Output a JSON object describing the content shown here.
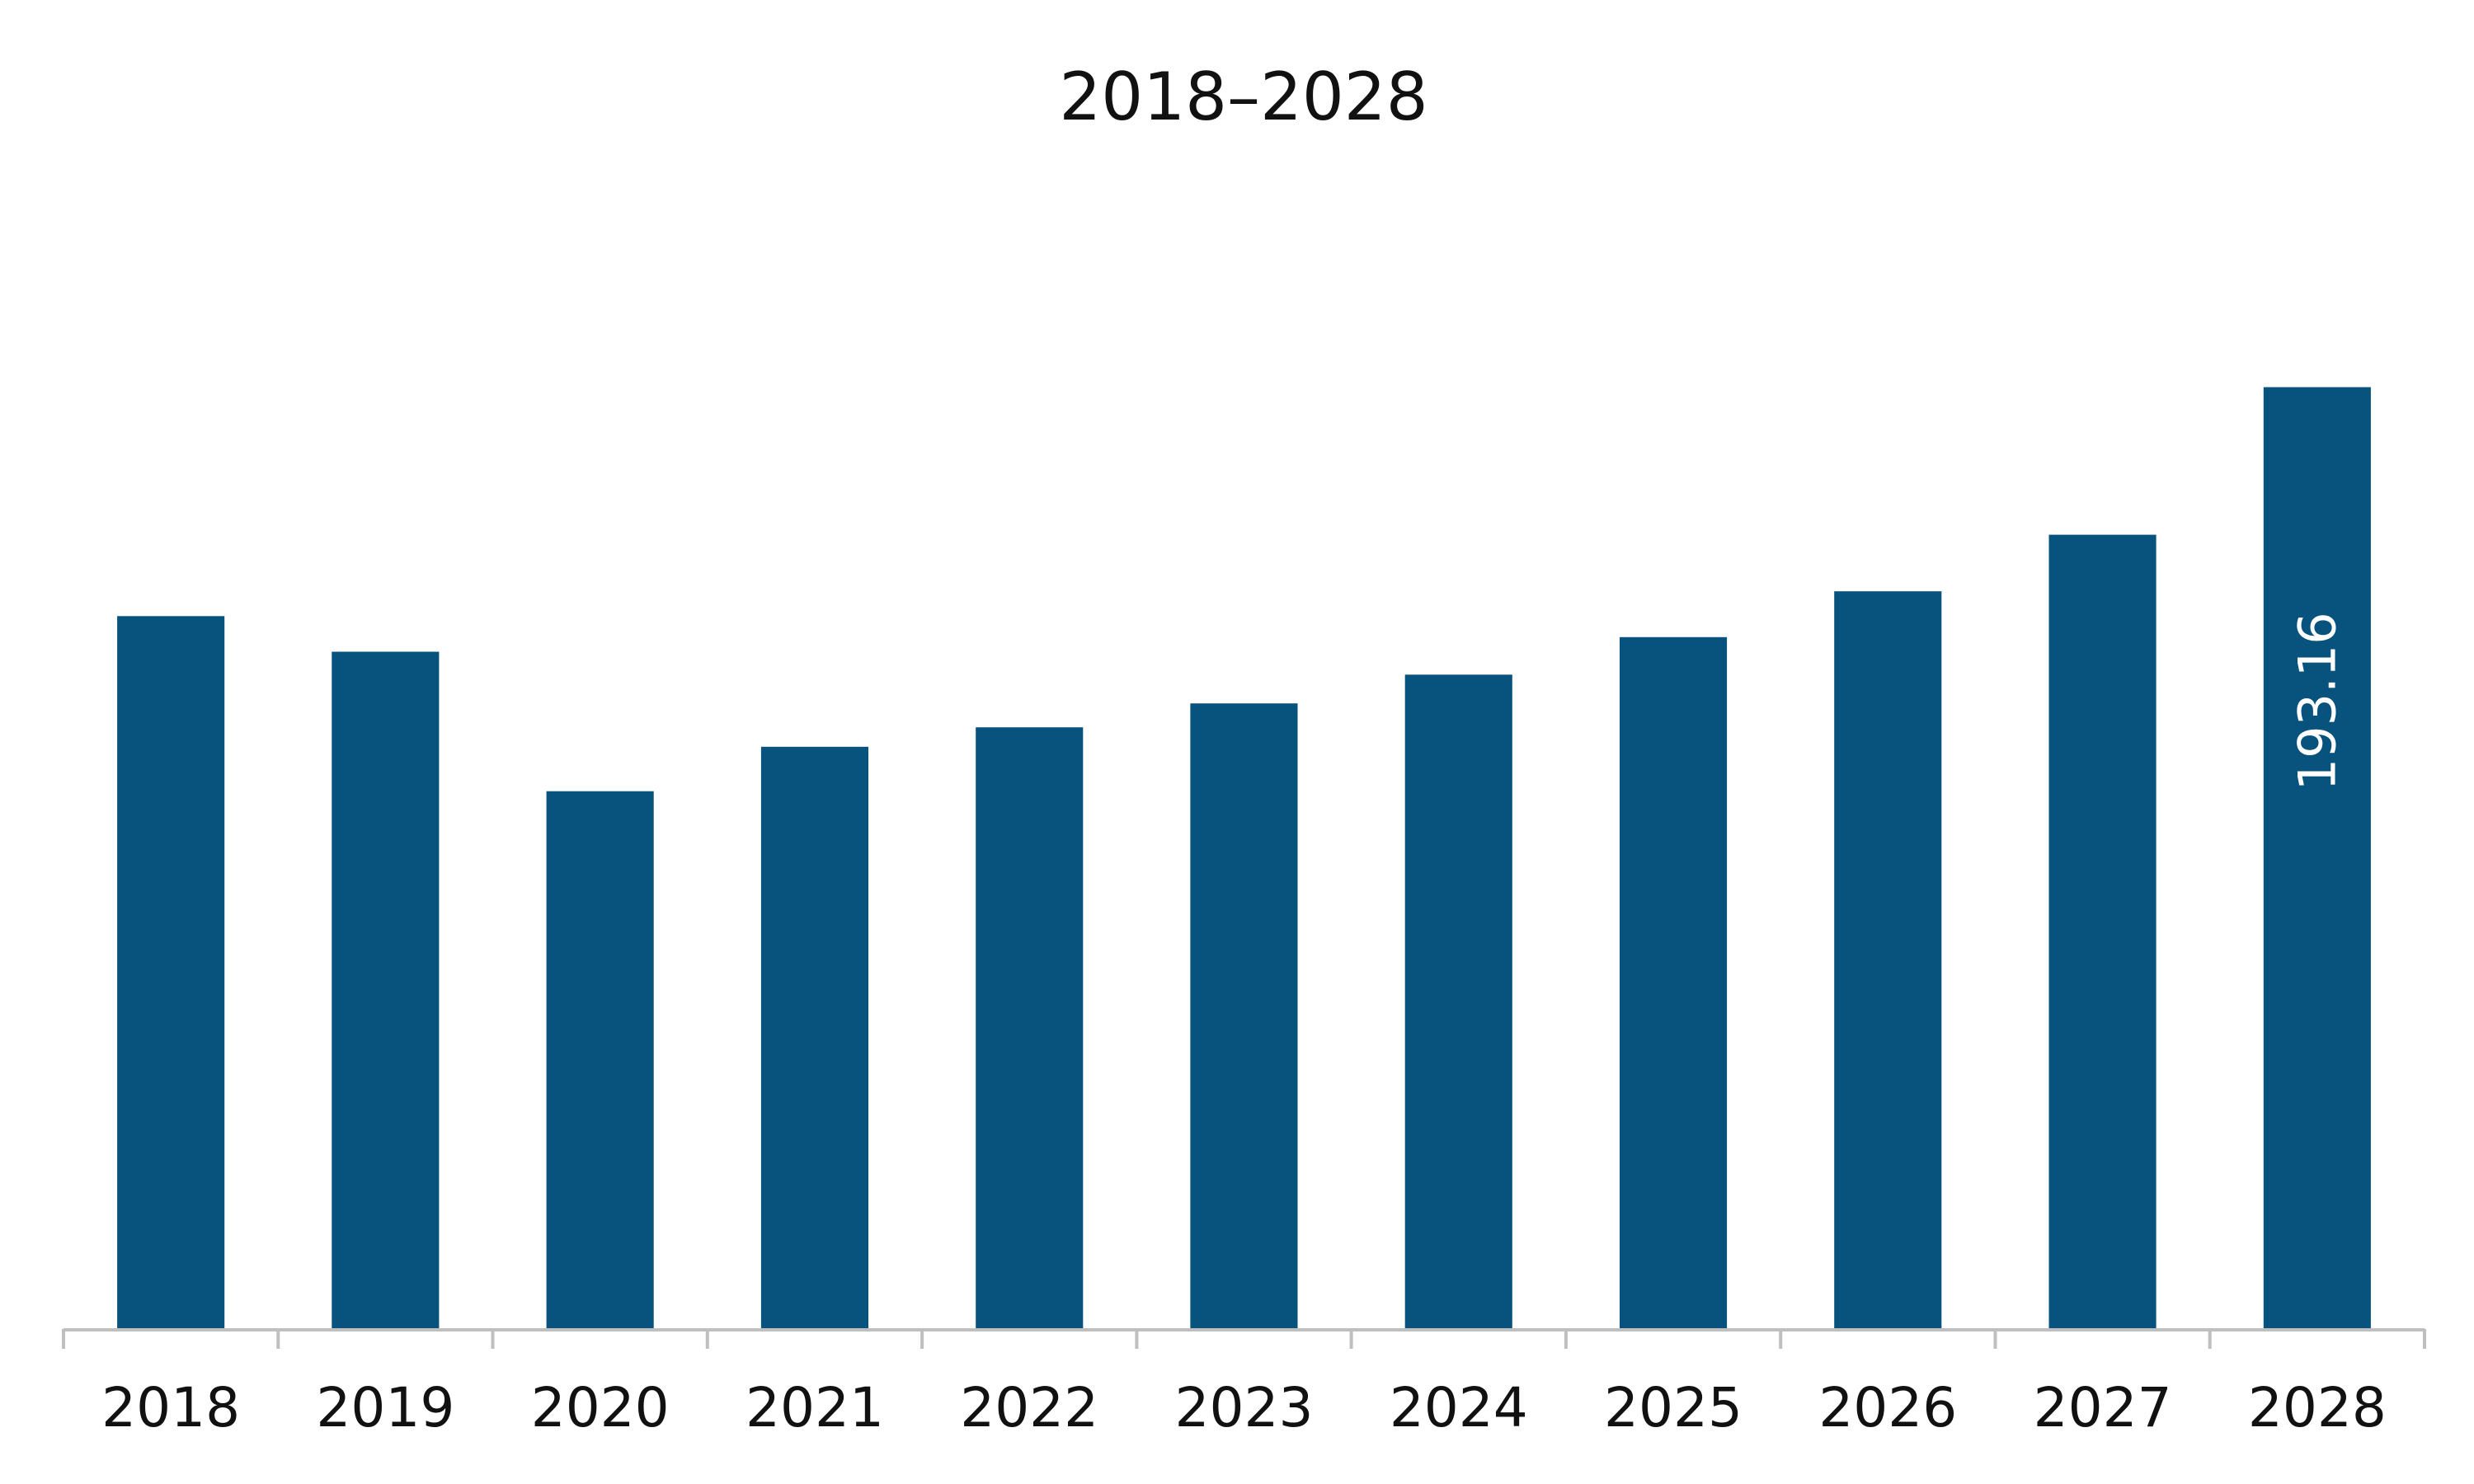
{
  "chart_data": {
    "type": "bar",
    "title": "2018–2028",
    "xlabel": "",
    "ylabel": "",
    "categories": [
      "2018",
      "2019",
      "2020",
      "2021",
      "2022",
      "2023",
      "2024",
      "2025",
      "2026",
      "2027",
      "2028"
    ],
    "values": [
      146.2,
      138.9,
      110.3,
      119.4,
      123.4,
      128.3,
      134.2,
      141.9,
      151.3,
      162.9,
      193.16
    ],
    "data_labels": [
      {
        "category": "2028",
        "text": "193.16"
      }
    ],
    "ylim": [
      0,
      210
    ],
    "grid": false,
    "legend": "none",
    "colors": {
      "bar": "#08527E",
      "axis": "#BFBFBF",
      "text": "#111111",
      "label": "#FFFFFF"
    }
  }
}
